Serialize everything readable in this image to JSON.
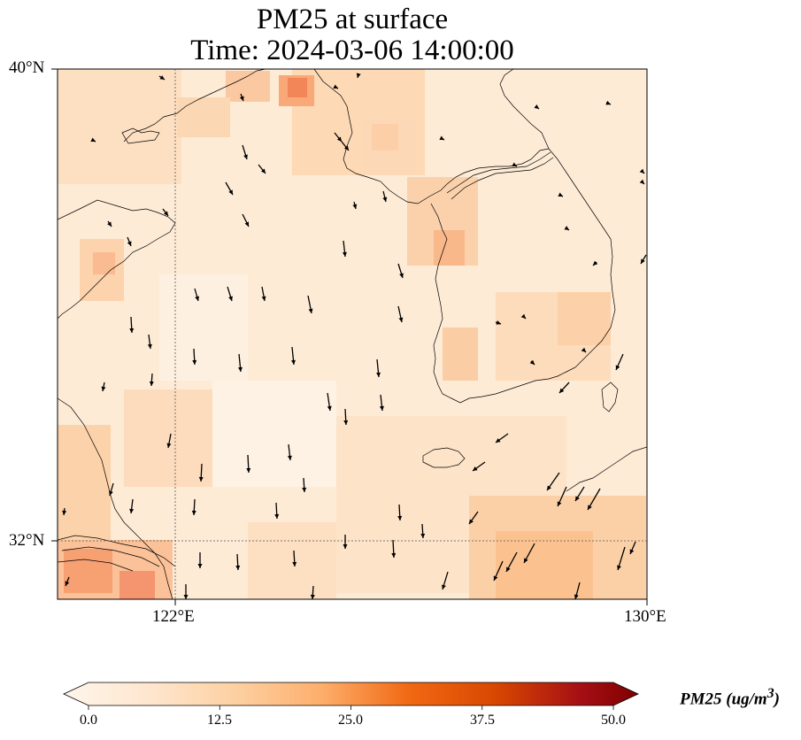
{
  "title": {
    "line1": "PM25 at surface",
    "line2": "Time: 2024-03-06 14:00:00"
  },
  "map": {
    "lon_range": [
      120,
      130
    ],
    "lat_range": [
      31,
      40
    ],
    "lat_ticks": [
      {
        "value": 40,
        "label": "40°N"
      },
      {
        "value": 32,
        "label": "32°N"
      }
    ],
    "lon_ticks": [
      {
        "value": 122,
        "label": "122°E"
      },
      {
        "value": 130,
        "label": "130°E"
      }
    ],
    "gridlines": "dotted at 122°E and 32°N",
    "field": "PM25 concentration (ug/m3), shaded with a light-to-dark orange/red colormap",
    "wind_vectors": "black arrows, mostly pointing southward / south-southwest"
  },
  "colorbar": {
    "label": "PM25 (ug/m",
    "label_sup": "3",
    "label_close": ")",
    "ticks": [
      "0.0",
      "12.5",
      "25.0",
      "37.5",
      "50.0"
    ],
    "min": 0,
    "max": 50,
    "extend": "both",
    "colors": [
      "#fff5eb",
      "#fdd0a2",
      "#fdae6b",
      "#f16913",
      "#d94801",
      "#a50f15",
      "#67000d"
    ]
  }
}
